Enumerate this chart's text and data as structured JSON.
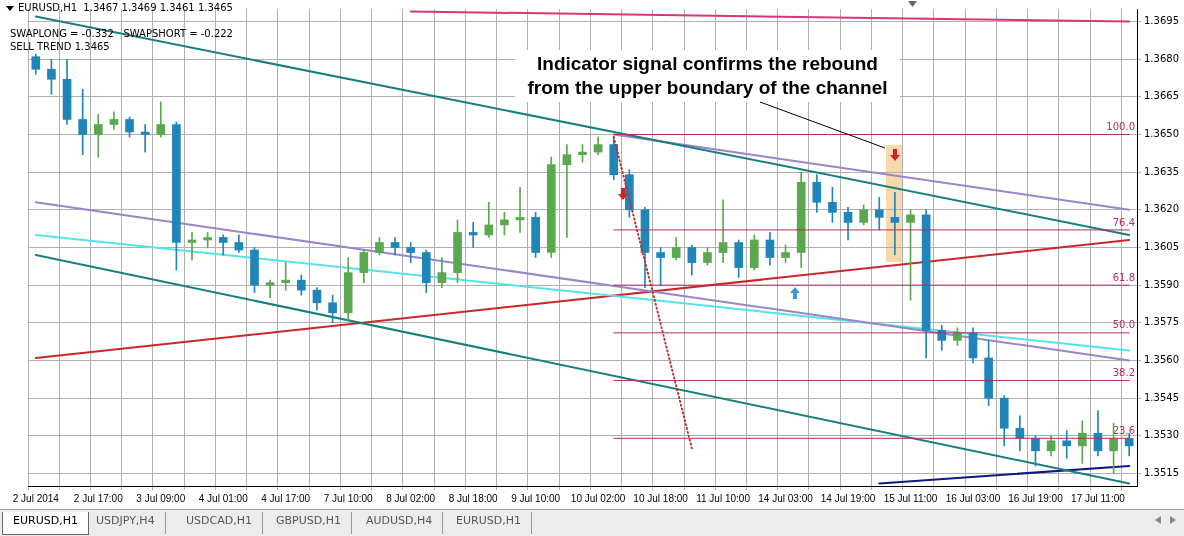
{
  "chart_data": {
    "type": "candlestick",
    "title": "EURUSD,H1  1.3467 1.3469 1.3461 1.3465",
    "categories": [
      "2 Jul 2014",
      null,
      null,
      null,
      "2 Jul 17:00",
      null,
      null,
      null,
      "3 Jul 09:00",
      null,
      null,
      null,
      "4 Jul 01:00",
      null,
      null,
      null,
      "4 Jul 17:00",
      null,
      null,
      null,
      "7 Jul 10:00",
      null,
      null,
      null,
      "8 Jul 02:00",
      null,
      null,
      null,
      "8 Jul 18:00",
      null,
      null,
      null,
      "9 Jul 10:00",
      null,
      null,
      null,
      "10 Jul 02:00",
      null,
      null,
      null,
      "10 Jul 18:00",
      null,
      null,
      null,
      "11 Jul 10:00",
      null,
      null,
      null,
      "14 Jul 03:00",
      null,
      null,
      null,
      "14 Jul 19:00",
      null,
      null,
      null,
      "15 Jul 11:00",
      null,
      null,
      null,
      "16 Jul 03:00",
      null,
      null,
      null,
      "16 Jul 19:00",
      null,
      null,
      null,
      "17 Jul 11:00",
      null,
      null
    ],
    "ohlc": [
      [
        1.3681,
        1.3682,
        1.3674,
        1.3676
      ],
      [
        1.3676,
        1.368,
        1.3666,
        1.3672
      ],
      [
        1.3672,
        1.368,
        1.3654,
        1.3656
      ],
      [
        1.3656,
        1.3668,
        1.3642,
        1.365
      ],
      [
        1.365,
        1.3658,
        1.3641,
        1.3654
      ],
      [
        1.3654,
        1.3659,
        1.3652,
        1.3656
      ],
      [
        1.3656,
        1.3657,
        1.3649,
        1.3651
      ],
      [
        1.3651,
        1.3654,
        1.3643,
        1.365
      ],
      [
        1.365,
        1.3663,
        1.3649,
        1.3654
      ],
      [
        1.3654,
        1.3655,
        1.3596,
        1.3607
      ],
      [
        1.3607,
        1.3611,
        1.36,
        1.3608
      ],
      [
        1.3608,
        1.3611,
        1.3605,
        1.3609
      ],
      [
        1.3609,
        1.361,
        1.3602,
        1.3607
      ],
      [
        1.3607,
        1.361,
        1.3603,
        1.3604
      ],
      [
        1.3604,
        1.3605,
        1.3587,
        1.359
      ],
      [
        1.359,
        1.3592,
        1.3585,
        1.3591
      ],
      [
        1.3591,
        1.3599,
        1.3588,
        1.3592
      ],
      [
        1.3592,
        1.3594,
        1.3586,
        1.3588
      ],
      [
        1.3588,
        1.3589,
        1.358,
        1.3583
      ],
      [
        1.3583,
        1.3586,
        1.3575,
        1.3579
      ],
      [
        1.3579,
        1.3601,
        1.3576,
        1.3595
      ],
      [
        1.3595,
        1.3604,
        1.3591,
        1.3603
      ],
      [
        1.3603,
        1.3609,
        1.3602,
        1.3607
      ],
      [
        1.3607,
        1.3609,
        1.3602,
        1.3605
      ],
      [
        1.3605,
        1.3607,
        1.3599,
        1.3603
      ],
      [
        1.3603,
        1.3604,
        1.3587,
        1.3591
      ],
      [
        1.3591,
        1.3601,
        1.3589,
        1.3595
      ],
      [
        1.3595,
        1.3616,
        1.3591,
        1.3611
      ],
      [
        1.3611,
        1.3615,
        1.3605,
        1.361
      ],
      [
        1.361,
        1.3623,
        1.3609,
        1.3614
      ],
      [
        1.3614,
        1.3619,
        1.361,
        1.3616
      ],
      [
        1.3616,
        1.3629,
        1.3611,
        1.3617
      ],
      [
        1.3617,
        1.3619,
        1.3601,
        1.3603
      ],
      [
        1.3603,
        1.3641,
        1.3601,
        1.3638
      ],
      [
        1.3638,
        1.3646,
        1.3609,
        1.3642
      ],
      [
        1.3642,
        1.3646,
        1.3639,
        1.3643
      ],
      [
        1.3643,
        1.3649,
        1.3642,
        1.3646
      ],
      [
        1.3646,
        1.3649,
        1.3632,
        1.3634
      ],
      [
        1.3634,
        1.3636,
        1.3617,
        1.362
      ],
      [
        1.362,
        1.3621,
        1.3589,
        1.3603
      ],
      [
        1.3603,
        1.3605,
        1.359,
        1.3601
      ],
      [
        1.3601,
        1.3609,
        1.36,
        1.3605
      ],
      [
        1.3605,
        1.3606,
        1.3594,
        1.3599
      ],
      [
        1.3599,
        1.3605,
        1.3598,
        1.3603
      ],
      [
        1.3603,
        1.3624,
        1.3599,
        1.3607
      ],
      [
        1.3607,
        1.3608,
        1.3593,
        1.3597
      ],
      [
        1.3597,
        1.361,
        1.3596,
        1.3608
      ],
      [
        1.3608,
        1.3611,
        1.3598,
        1.3601
      ],
      [
        1.3601,
        1.3606,
        1.3599,
        1.3603
      ],
      [
        1.3603,
        1.3635,
        1.3597,
        1.3631
      ],
      [
        1.3631,
        1.3634,
        1.3619,
        1.3623
      ],
      [
        1.3623,
        1.3629,
        1.3615,
        1.3619
      ],
      [
        1.3619,
        1.3621,
        1.3608,
        1.3615
      ],
      [
        1.3615,
        1.3622,
        1.3614,
        1.362
      ],
      [
        1.362,
        1.3625,
        1.3612,
        1.3617
      ],
      [
        1.3617,
        1.3627,
        1.3602,
        1.3615
      ],
      [
        1.3615,
        1.362,
        1.3584,
        1.3618
      ],
      [
        1.3618,
        1.362,
        1.3561,
        1.3572
      ],
      [
        1.3572,
        1.3574,
        1.3564,
        1.3568
      ],
      [
        1.3568,
        1.3573,
        1.3566,
        1.3571
      ],
      [
        1.3571,
        1.3573,
        1.3559,
        1.3561
      ],
      [
        1.3561,
        1.3568,
        1.3542,
        1.3545
      ],
      [
        1.3545,
        1.3546,
        1.3526,
        1.3533
      ],
      [
        1.3533,
        1.3538,
        1.3524,
        1.3529
      ],
      [
        1.3529,
        1.353,
        1.3518,
        1.3524
      ],
      [
        1.3524,
        1.353,
        1.3522,
        1.3528
      ],
      [
        1.3528,
        1.3532,
        1.3521,
        1.3526
      ],
      [
        1.3526,
        1.3536,
        1.3519,
        1.3531
      ],
      [
        1.3531,
        1.354,
        1.3522,
        1.3524
      ],
      [
        1.3524,
        1.3535,
        1.3515,
        1.3529
      ],
      [
        1.3529,
        1.3531,
        1.3522,
        1.3526
      ]
    ],
    "colors": [
      "#2085b8",
      "#2085b8",
      "#2085b8",
      "#2085b8",
      "#5aa84f",
      "#5aa84f",
      "#2085b8",
      "#2085b8",
      "#5aa84f",
      "#2085b8",
      "#5aa84f",
      "#5aa84f",
      "#2085b8",
      "#2085b8",
      "#2085b8",
      "#5aa84f",
      "#5aa84f",
      "#2085b8",
      "#2085b8",
      "#2085b8",
      "#5aa84f",
      "#5aa84f",
      "#5aa84f",
      "#2085b8",
      "#2085b8",
      "#2085b8",
      "#5aa84f",
      "#5aa84f",
      "#2085b8",
      "#5aa84f",
      "#5aa84f",
      "#5aa84f",
      "#2085b8",
      "#5aa84f",
      "#5aa84f",
      "#5aa84f",
      "#5aa84f",
      "#2085b8",
      "#2085b8",
      "#2085b8",
      "#2085b8",
      "#5aa84f",
      "#2085b8",
      "#5aa84f",
      "#5aa84f",
      "#2085b8",
      "#5aa84f",
      "#2085b8",
      "#5aa84f",
      "#5aa84f",
      "#2085b8",
      "#2085b8",
      "#2085b8",
      "#5aa84f",
      "#2085b8",
      "#2085b8",
      "#5aa84f",
      "#2085b8",
      "#2085b8",
      "#5aa84f",
      "#2085b8",
      "#2085b8",
      "#2085b8",
      "#2085b8",
      "#2085b8",
      "#5aa84f",
      "#2085b8",
      "#5aa84f",
      "#2085b8",
      "#5aa84f",
      "#2085b8"
    ],
    "series": [
      {
        "type": "line",
        "color": "#17807c",
        "values": [
          1.3697,
          null,
          null,
          null,
          null,
          null,
          null,
          null,
          null,
          null,
          null,
          null,
          null,
          null,
          null,
          null,
          null,
          null,
          null,
          null,
          null,
          null,
          null,
          null,
          null,
          null,
          null,
          null,
          null,
          null,
          null,
          null,
          null,
          null,
          null,
          null,
          null,
          null,
          null,
          null,
          null,
          null,
          null,
          null,
          null,
          null,
          null,
          null,
          null,
          null,
          null,
          null,
          null,
          null,
          null,
          null,
          null,
          null,
          null,
          null,
          null,
          null,
          null,
          null,
          null,
          null,
          null,
          null,
          null,
          null,
          1.361
        ]
      },
      {
        "type": "line",
        "color": "#17807c",
        "values": [
          1.3602,
          null,
          null,
          null,
          null,
          null,
          null,
          null,
          null,
          null,
          null,
          null,
          null,
          null,
          null,
          null,
          null,
          null,
          null,
          null,
          null,
          null,
          null,
          null,
          null,
          null,
          null,
          null,
          null,
          null,
          null,
          null,
          null,
          null,
          null,
          null,
          null,
          null,
          null,
          null,
          null,
          null,
          null,
          null,
          null,
          null,
          null,
          null,
          null,
          null,
          null,
          null,
          null,
          null,
          null,
          null,
          null,
          null,
          null,
          null,
          null,
          null,
          null,
          null,
          null,
          null,
          null,
          null,
          null,
          null,
          1.3511
        ]
      },
      {
        "type": "line",
        "color": "#9b84c9",
        "values": [
          1.3623,
          null,
          null,
          null,
          null,
          null,
          null,
          null,
          null,
          null,
          null,
          null,
          null,
          null,
          null,
          null,
          null,
          null,
          null,
          null,
          null,
          null,
          null,
          null,
          null,
          null,
          null,
          null,
          null,
          null,
          null,
          null,
          null,
          null,
          null,
          null,
          null,
          null,
          null,
          null,
          null,
          null,
          null,
          null,
          null,
          null,
          null,
          null,
          null,
          null,
          null,
          null,
          null,
          null,
          null,
          null,
          null,
          null,
          null,
          null,
          null,
          null,
          null,
          null,
          null,
          null,
          null,
          null,
          null,
          null,
          1.356
        ]
      },
      {
        "type": "line",
        "color": "#55e3e8",
        "values": [
          1.361,
          null,
          null,
          null,
          null,
          null,
          null,
          null,
          null,
          null,
          null,
          null,
          null,
          null,
          null,
          null,
          null,
          null,
          null,
          null,
          null,
          null,
          null,
          null,
          null,
          null,
          null,
          null,
          null,
          null,
          null,
          null,
          null,
          null,
          null,
          null,
          null,
          null,
          null,
          null,
          null,
          null,
          null,
          null,
          null,
          null,
          null,
          null,
          null,
          null,
          null,
          null,
          null,
          null,
          null,
          null,
          null,
          null,
          null,
          null,
          null,
          null,
          null,
          null,
          null,
          null,
          null,
          null,
          null,
          null,
          1.3564
        ]
      },
      {
        "type": "line",
        "color": "#c8282a",
        "values": [
          1.3561,
          null,
          null,
          null,
          null,
          null,
          null,
          null,
          null,
          null,
          null,
          null,
          null,
          null,
          null,
          null,
          null,
          null,
          null,
          null,
          null,
          null,
          null,
          null,
          null,
          null,
          null,
          null,
          null,
          null,
          null,
          null,
          null,
          null,
          null,
          null,
          null,
          null,
          null,
          null,
          null,
          null,
          null,
          null,
          null,
          null,
          null,
          null,
          null,
          null,
          null,
          null,
          null,
          null,
          null,
          null,
          null,
          null,
          null,
          null,
          null,
          null,
          null,
          null,
          null,
          null,
          null,
          null,
          null,
          null,
          1.3608
        ]
      },
      {
        "type": "line",
        "color": "#9b84c9",
        "values": [
          null,
          null,
          null,
          null,
          null,
          null,
          null,
          null,
          null,
          null,
          null,
          null,
          null,
          null,
          null,
          null,
          null,
          null,
          null,
          null,
          null,
          null,
          null,
          null,
          null,
          null,
          null,
          null,
          null,
          null,
          null,
          null,
          null,
          null,
          null,
          null,
          null,
          1.365,
          null,
          null,
          null,
          null,
          null,
          null,
          null,
          null,
          null,
          null,
          null,
          null,
          null,
          null,
          null,
          null,
          null,
          null,
          null,
          null,
          null,
          null,
          null,
          null,
          null,
          null,
          null,
          null,
          null,
          null,
          null,
          null,
          1.362
        ]
      },
      {
        "type": "line",
        "color": "#d8357a",
        "values": [
          null,
          null,
          null,
          null,
          null,
          null,
          null,
          null,
          null,
          null,
          null,
          null,
          null,
          null,
          null,
          null,
          null,
          null,
          null,
          null,
          null,
          null,
          null,
          null,
          1.3699,
          null,
          null,
          null,
          null,
          null,
          null,
          null,
          null,
          null,
          null,
          null,
          null,
          null,
          null,
          null,
          null,
          null,
          null,
          null,
          null,
          null,
          null,
          null,
          null,
          null,
          null,
          null,
          null,
          null,
          null,
          null,
          null,
          null,
          null,
          null,
          null,
          null,
          null,
          null,
          null,
          null,
          null,
          null,
          null,
          null,
          1.3695
        ]
      },
      {
        "type": "line",
        "color": "#101880",
        "values": [
          null,
          null,
          null,
          null,
          null,
          null,
          null,
          null,
          null,
          null,
          null,
          null,
          null,
          null,
          null,
          null,
          null,
          null,
          null,
          null,
          null,
          null,
          null,
          null,
          null,
          null,
          null,
          null,
          null,
          null,
          null,
          null,
          null,
          null,
          null,
          null,
          null,
          null,
          null,
          null,
          null,
          null,
          null,
          null,
          null,
          null,
          null,
          null,
          null,
          null,
          null,
          null,
          null,
          null,
          1.3511,
          null,
          null,
          null,
          null,
          null,
          null,
          null,
          null,
          null,
          null,
          null,
          null,
          null,
          null,
          null,
          1.3518
        ]
      },
      {
        "type": "line",
        "color": "#c03030",
        "line_style": "dotted",
        "values": [
          null,
          null,
          null,
          null,
          null,
          null,
          null,
          null,
          null,
          null,
          null,
          null,
          null,
          null,
          null,
          null,
          null,
          null,
          null,
          null,
          null,
          null,
          null,
          null,
          null,
          null,
          null,
          null,
          null,
          null,
          null,
          null,
          null,
          null,
          null,
          null,
          null,
          1.3649,
          null,
          null,
          null,
          null,
          1.3525,
          null,
          null,
          null,
          null,
          null,
          null,
          null,
          null,
          null,
          null,
          null,
          null,
          null,
          null,
          null,
          null,
          null,
          null,
          null,
          null,
          null,
          null,
          null,
          null,
          null,
          null,
          null,
          null
        ]
      },
      {
        "type": "line",
        "name": "100.0",
        "color": "#b0305a",
        "values": [
          null,
          null,
          null,
          null,
          null,
          null,
          null,
          null,
          null,
          null,
          null,
          null,
          null,
          null,
          null,
          null,
          null,
          null,
          null,
          null,
          null,
          null,
          null,
          null,
          null,
          null,
          null,
          null,
          null,
          null,
          null,
          null,
          null,
          null,
          null,
          null,
          null,
          1.365,
          null,
          null,
          null,
          null,
          null,
          null,
          null,
          null,
          null,
          null,
          null,
          null,
          null,
          null,
          null,
          null,
          null,
          null,
          null,
          null,
          null,
          null,
          null,
          null,
          null,
          null,
          null,
          null,
          null,
          null,
          null,
          null,
          1.365
        ]
      },
      {
        "type": "line",
        "name": "76.4",
        "color": "#b0305a",
        "values": [
          null,
          null,
          null,
          null,
          null,
          null,
          null,
          null,
          null,
          null,
          null,
          null,
          null,
          null,
          null,
          null,
          null,
          null,
          null,
          null,
          null,
          null,
          null,
          null,
          null,
          null,
          null,
          null,
          null,
          null,
          null,
          null,
          null,
          null,
          null,
          null,
          null,
          1.3612,
          null,
          null,
          null,
          null,
          null,
          null,
          null,
          null,
          null,
          null,
          null,
          null,
          null,
          null,
          null,
          null,
          null,
          null,
          null,
          null,
          null,
          null,
          null,
          null,
          null,
          null,
          null,
          null,
          null,
          null,
          null,
          null,
          1.3612
        ]
      },
      {
        "type": "line",
        "name": "61.8",
        "color": "#b0305a",
        "values": [
          null,
          null,
          null,
          null,
          null,
          null,
          null,
          null,
          null,
          null,
          null,
          null,
          null,
          null,
          null,
          null,
          null,
          null,
          null,
          null,
          null,
          null,
          null,
          null,
          null,
          null,
          null,
          null,
          null,
          null,
          null,
          null,
          null,
          null,
          null,
          null,
          null,
          1.359,
          null,
          null,
          null,
          null,
          null,
          null,
          null,
          null,
          null,
          null,
          null,
          null,
          null,
          null,
          null,
          null,
          null,
          null,
          null,
          null,
          null,
          null,
          null,
          null,
          null,
          null,
          null,
          null,
          null,
          null,
          null,
          null,
          1.359
        ]
      },
      {
        "type": "line",
        "name": "50.0",
        "color": "#b0305a",
        "values": [
          null,
          null,
          null,
          null,
          null,
          null,
          null,
          null,
          null,
          null,
          null,
          null,
          null,
          null,
          null,
          null,
          null,
          null,
          null,
          null,
          null,
          null,
          null,
          null,
          null,
          null,
          null,
          null,
          null,
          null,
          null,
          null,
          null,
          null,
          null,
          null,
          null,
          1.3571,
          null,
          null,
          null,
          null,
          null,
          null,
          null,
          null,
          null,
          null,
          null,
          null,
          null,
          null,
          null,
          null,
          null,
          null,
          null,
          null,
          null,
          null,
          null,
          null,
          null,
          null,
          null,
          null,
          null,
          null,
          null,
          null,
          1.3571
        ]
      },
      {
        "type": "line",
        "name": "38.2",
        "color": "#b0305a",
        "values": [
          null,
          null,
          null,
          null,
          null,
          null,
          null,
          null,
          null,
          null,
          null,
          null,
          null,
          null,
          null,
          null,
          null,
          null,
          null,
          null,
          null,
          null,
          null,
          null,
          null,
          null,
          null,
          null,
          null,
          null,
          null,
          null,
          null,
          null,
          null,
          null,
          null,
          1.3552,
          null,
          null,
          null,
          null,
          null,
          null,
          null,
          null,
          null,
          null,
          null,
          null,
          null,
          null,
          null,
          null,
          null,
          null,
          null,
          null,
          null,
          null,
          null,
          null,
          null,
          null,
          null,
          null,
          null,
          null,
          null,
          null,
          1.3552
        ]
      },
      {
        "type": "line",
        "name": "23.6",
        "color": "#b0305a",
        "values": [
          null,
          null,
          null,
          null,
          null,
          null,
          null,
          null,
          null,
          null,
          null,
          null,
          null,
          null,
          null,
          null,
          null,
          null,
          null,
          null,
          null,
          null,
          null,
          null,
          null,
          null,
          null,
          null,
          null,
          null,
          null,
          null,
          null,
          null,
          null,
          null,
          null,
          1.3529,
          null,
          null,
          null,
          null,
          null,
          null,
          null,
          null,
          null,
          null,
          null,
          null,
          null,
          null,
          null,
          null,
          null,
          null,
          null,
          null,
          null,
          null,
          null,
          null,
          null,
          null,
          null,
          null,
          null,
          null,
          null,
          null,
          1.3529
        ]
      }
    ],
    "ylim": [
      1.351,
      1.37
    ],
    "yticks": [
      1.3515,
      {
        "value": 1.353,
        "label": "1.3530"
      },
      1.3545,
      {
        "value": 1.356,
        "label": "1.3560"
      },
      1.3575,
      {
        "value": 1.359,
        "label": "1.3590"
      },
      1.3605,
      {
        "value": 1.362,
        "label": "1.3620"
      },
      1.3635,
      {
        "value": 1.365,
        "label": "1.3650"
      },
      1.3665,
      {
        "value": 1.368,
        "label": "1.3680"
      },
      1.3695
    ],
    "grid": true,
    "legend": false,
    "annotations": [
      "SWAPLONG = -0.332   SWAPSHORT = -0.222",
      "SELL TREND 1.3465",
      "Indicator signal confirms the rebound from the upper boundary of the channel",
      "EURUSD,H1",
      "USDJPY,H4",
      "USDCAD,H1",
      "GBPUSD,H1",
      "AUDUSD,H4",
      "EURUSD,H1"
    ]
  }
}
